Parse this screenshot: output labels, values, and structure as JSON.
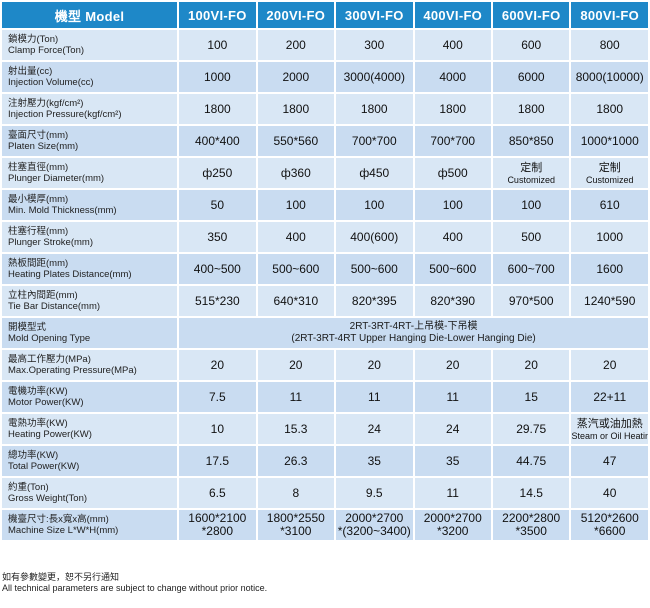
{
  "header": {
    "model_label": "機型 Model",
    "models": [
      "100VI-FO",
      "200VI-FO",
      "300VI-FO",
      "400VI-FO",
      "600VI-FO",
      "800VI-FO"
    ]
  },
  "rows": [
    {
      "zh": "鎖模力(Ton)",
      "en": "Clamp Force(Ton)",
      "values": [
        [
          "100"
        ],
        [
          "200"
        ],
        [
          "300"
        ],
        [
          "400"
        ],
        [
          "600"
        ],
        [
          "800"
        ]
      ]
    },
    {
      "zh": "射出量(cc)",
      "en": "Injection Volume(cc)",
      "values": [
        [
          "1000"
        ],
        [
          "2000"
        ],
        [
          "3000(4000)"
        ],
        [
          "4000"
        ],
        [
          "6000"
        ],
        [
          "8000(10000)"
        ]
      ]
    },
    {
      "zh": "注射壓力(kgf/cm²)",
      "en": "Injection Pressure(kgf/cm²)",
      "values": [
        [
          "1800"
        ],
        [
          "1800"
        ],
        [
          "1800"
        ],
        [
          "1800"
        ],
        [
          "1800"
        ],
        [
          "1800"
        ]
      ]
    },
    {
      "zh": "臺面尺寸(mm)",
      "en": "Platen Size(mm)",
      "values": [
        [
          "400*400"
        ],
        [
          "550*560"
        ],
        [
          "700*700"
        ],
        [
          "700*700"
        ],
        [
          "850*850"
        ],
        [
          "1000*1000"
        ]
      ]
    },
    {
      "zh": "柱塞直徑(mm)",
      "en": "Plunger Diameter(mm)",
      "values": [
        [
          "ф250"
        ],
        [
          "ф360"
        ],
        [
          "ф450"
        ],
        [
          "ф500"
        ],
        [
          "定制",
          "Customized"
        ],
        [
          "定制",
          "Customized"
        ]
      ]
    },
    {
      "zh": "最小模厚(mm)",
      "en": "Min. Mold Thickness(mm)",
      "values": [
        [
          "50"
        ],
        [
          "100"
        ],
        [
          "100"
        ],
        [
          "100"
        ],
        [
          "100"
        ],
        [
          "610"
        ]
      ]
    },
    {
      "zh": "柱塞行程(mm)",
      "en": "Plunger Stroke(mm)",
      "values": [
        [
          "350"
        ],
        [
          "400"
        ],
        [
          "400(600)"
        ],
        [
          "400"
        ],
        [
          "500"
        ],
        [
          "1000"
        ]
      ]
    },
    {
      "zh": "熱板間距(mm)",
      "en": "Heating Plates Distance(mm)",
      "values": [
        [
          "400~500"
        ],
        [
          "500~600"
        ],
        [
          "500~600"
        ],
        [
          "500~600"
        ],
        [
          "600~700"
        ],
        [
          "1600"
        ]
      ]
    },
    {
      "zh": "立柱內間距(mm)",
      "en": "Tie Bar Distance(mm)",
      "values": [
        [
          "515*230"
        ],
        [
          "640*310"
        ],
        [
          "820*395"
        ],
        [
          "820*390"
        ],
        [
          "970*500"
        ],
        [
          "1240*590"
        ]
      ]
    },
    {
      "zh": "開模型式",
      "en": "Mold Opening Type",
      "span_values": [
        "2RT-3RT-4RT-上吊模-下吊模",
        "(2RT-3RT-4RT Upper Hanging Die-Lower Hanging Die)"
      ]
    },
    {
      "zh": "最高工作壓力(MPa)",
      "en": "Max.Operating Pressure(MPa)",
      "values": [
        [
          "20"
        ],
        [
          "20"
        ],
        [
          "20"
        ],
        [
          "20"
        ],
        [
          "20"
        ],
        [
          "20"
        ]
      ]
    },
    {
      "zh": "電機功率(KW)",
      "en": "Motor Power(KW)",
      "values": [
        [
          "7.5"
        ],
        [
          "11"
        ],
        [
          "11"
        ],
        [
          "11"
        ],
        [
          "15"
        ],
        [
          "22+11"
        ]
      ]
    },
    {
      "zh": "電熱功率(KW)",
      "en": "Heating Power(KW)",
      "values": [
        [
          "10"
        ],
        [
          "15.3"
        ],
        [
          "24"
        ],
        [
          "24"
        ],
        [
          "29.75"
        ],
        [
          "蒸汽或油加熱",
          "Steam or Oil Heating"
        ]
      ]
    },
    {
      "zh": "總功率(KW)",
      "en": "Total Power(KW)",
      "values": [
        [
          "17.5"
        ],
        [
          "26.3"
        ],
        [
          "35"
        ],
        [
          "35"
        ],
        [
          "44.75"
        ],
        [
          "47"
        ]
      ]
    },
    {
      "zh": "約重(Ton)",
      "en": "Gross Weight(Ton)",
      "values": [
        [
          "6.5"
        ],
        [
          "8"
        ],
        [
          "9.5"
        ],
        [
          "11"
        ],
        [
          "14.5"
        ],
        [
          "40"
        ]
      ]
    },
    {
      "zh": "機臺尺寸:長x寬x高(mm)",
      "en": "Machine Size L*W*H(mm)",
      "values": [
        [
          "1600*2100",
          "*2800"
        ],
        [
          "1800*2550",
          "*3100"
        ],
        [
          "2000*2700",
          "*(3200~3400)"
        ],
        [
          "2000*2700",
          "*3200"
        ],
        [
          "2200*2800",
          "*3500"
        ],
        [
          "5120*2600",
          "*6600"
        ]
      ]
    }
  ],
  "footnote": {
    "zh": "如有參數變更，恕不另行通知",
    "en": "All technical parameters are subject to change without prior notice."
  },
  "colors": {
    "header_bg": "#1e88c8",
    "row_light": "#d9e7f5",
    "row_dark": "#c9dcf1"
  }
}
